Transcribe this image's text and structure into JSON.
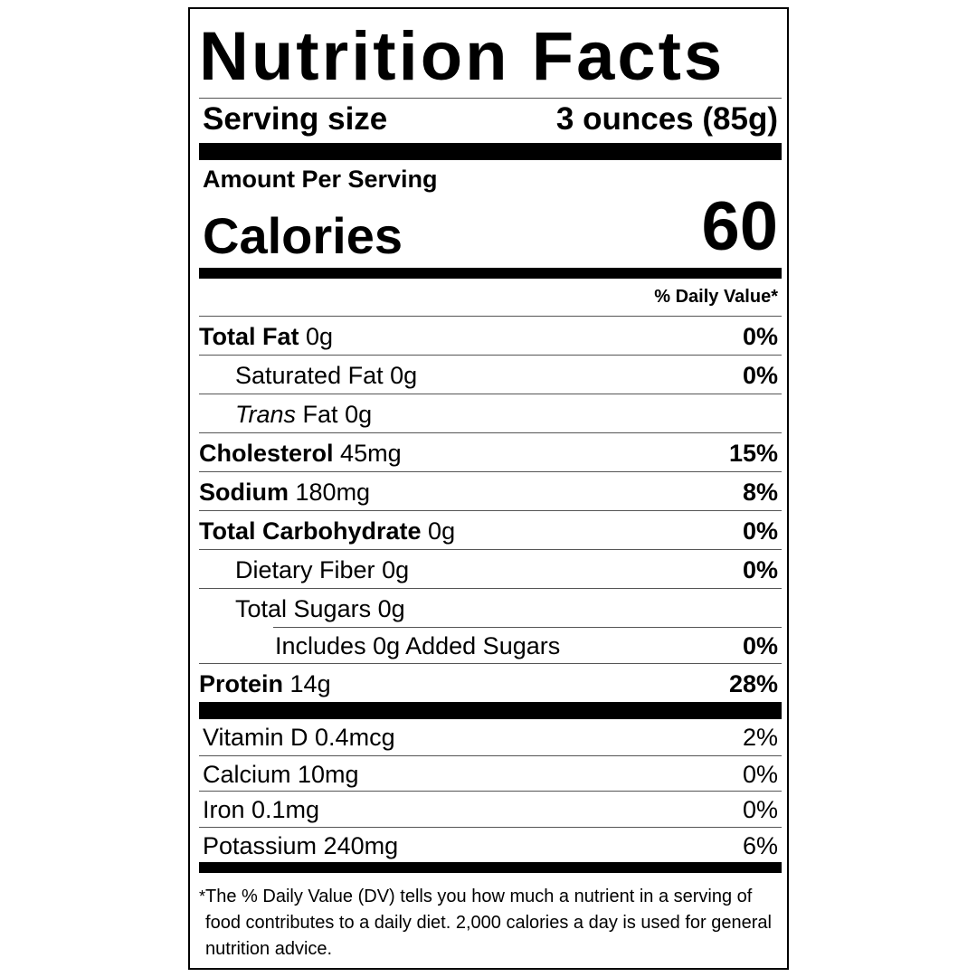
{
  "title": "Nutrition Facts",
  "serving": {
    "label": "Serving size",
    "value": "3 ounces (85g)"
  },
  "amount_per_serving": "Amount Per Serving",
  "calories": {
    "label": "Calories",
    "value": "60"
  },
  "daily_value_header": "% Daily Value*",
  "nutrients": [
    {
      "name": "Total Fat",
      "amount": "0g",
      "dv": "0%",
      "bold": true,
      "indent": 0
    },
    {
      "name": "Saturated Fat",
      "amount": "0g",
      "dv": "0%",
      "bold": false,
      "indent": 1
    },
    {
      "name": "Trans",
      "suffix": "Fat",
      "amount": "0g",
      "dv": "",
      "bold": false,
      "indent": 1,
      "italic": true
    },
    {
      "name": "Cholesterol",
      "amount": "45mg",
      "dv": "15%",
      "bold": true,
      "indent": 0
    },
    {
      "name": "Sodium",
      "amount": "180mg",
      "dv": "8%",
      "bold": true,
      "indent": 0
    },
    {
      "name": "Total Carbohydrate",
      "amount": "0g",
      "dv": "0%",
      "bold": true,
      "indent": 0
    },
    {
      "name": "Dietary Fiber",
      "amount": "0g",
      "dv": "0%",
      "bold": false,
      "indent": 1
    },
    {
      "name": "Total Sugars",
      "amount": "0g",
      "dv": "",
      "bold": false,
      "indent": 1
    },
    {
      "name": "Includes 0g Added Sugars",
      "amount": "",
      "dv": "0%",
      "bold": false,
      "indent": 2
    },
    {
      "name": "Protein",
      "amount": "14g",
      "dv": "28%",
      "bold": true,
      "indent": 0
    }
  ],
  "vitamins": [
    {
      "name": "Vitamin D 0.4mcg",
      "dv": "2%"
    },
    {
      "name": "Calcium 10mg",
      "dv": "0%"
    },
    {
      "name": "Iron 0.1mg",
      "dv": "0%"
    },
    {
      "name": "Potassium 240mg",
      "dv": "6%"
    }
  ],
  "footnote": {
    "star": "*",
    "text": "The % Daily Value (DV) tells you how much a nutrient in a serving of food contributes to a daily diet. 2,000 calories a day is used for general nutrition advice."
  }
}
